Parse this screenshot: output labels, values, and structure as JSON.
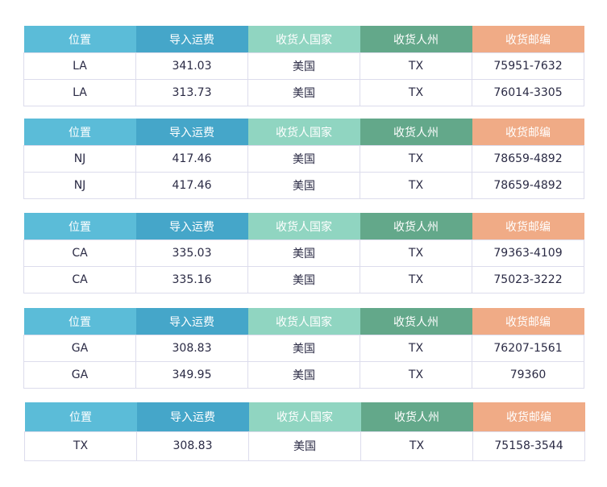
{
  "headers": [
    "位置",
    "导入运费",
    "收货人国家",
    "收货人州",
    "收货邮编"
  ],
  "tables": [
    {
      "rows": [
        [
          "LA",
          "341.03",
          "美国",
          "TX",
          "75951-7632"
        ],
        [
          "LA",
          "313.73",
          "美国",
          "TX",
          "76014-3305"
        ]
      ]
    },
    {
      "rows": [
        [
          "NJ",
          "417.46",
          "美国",
          "TX",
          "78659-4892"
        ],
        [
          "NJ",
          "417.46",
          "美国",
          "TX",
          "78659-4892"
        ]
      ]
    },
    {
      "rows": [
        [
          "CA",
          "335.03",
          "美国",
          "TX",
          "79363-4109"
        ],
        [
          "CA",
          "335.16",
          "美国",
          "TX",
          "75023-3222"
        ]
      ]
    },
    {
      "rows": [
        [
          "GA",
          "308.83",
          "美国",
          "TX",
          "76207-1561"
        ],
        [
          "GA",
          "349.95",
          "美国",
          "TX",
          "79360"
        ]
      ]
    },
    {
      "rows": [
        [
          "TX",
          "308.83",
          "美国",
          "TX",
          "75158-3544"
        ]
      ]
    }
  ]
}
